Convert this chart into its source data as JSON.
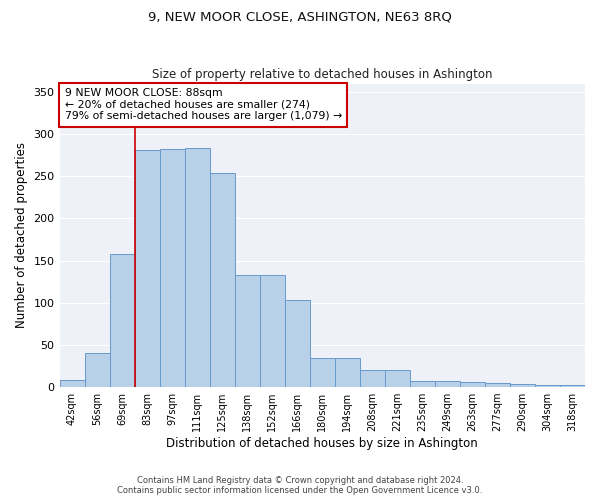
{
  "title": "9, NEW MOOR CLOSE, ASHINGTON, NE63 8RQ",
  "subtitle": "Size of property relative to detached houses in Ashington",
  "xlabel": "Distribution of detached houses by size in Ashington",
  "ylabel": "Number of detached properties",
  "bar_color": "#b8d0e8",
  "bar_edge_color": "#6699cc",
  "background_color": "#eef2f8",
  "bins": [
    "42sqm",
    "56sqm",
    "69sqm",
    "83sqm",
    "97sqm",
    "111sqm",
    "125sqm",
    "138sqm",
    "152sqm",
    "166sqm",
    "180sqm",
    "194sqm",
    "208sqm",
    "221sqm",
    "235sqm",
    "249sqm",
    "263sqm",
    "277sqm",
    "290sqm",
    "304sqm",
    "318sqm"
  ],
  "values": [
    8,
    41,
    158,
    281,
    282,
    283,
    254,
    133,
    133,
    103,
    35,
    35,
    20,
    20,
    7,
    7,
    6,
    5,
    4,
    3,
    3
  ],
  "ylim": [
    0,
    360
  ],
  "yticks": [
    0,
    50,
    100,
    150,
    200,
    250,
    300,
    350
  ],
  "vline_bin_index": 3,
  "annotation_text": "9 NEW MOOR CLOSE: 88sqm\n← 20% of detached houses are smaller (274)\n79% of semi-detached houses are larger (1,079) →",
  "annotation_box_color": "#ffffff",
  "annotation_border_color": "#cc0000",
  "vline_color": "#cc0000",
  "footer_line1": "Contains HM Land Registry data © Crown copyright and database right 2024.",
  "footer_line2": "Contains public sector information licensed under the Open Government Licence v3.0."
}
